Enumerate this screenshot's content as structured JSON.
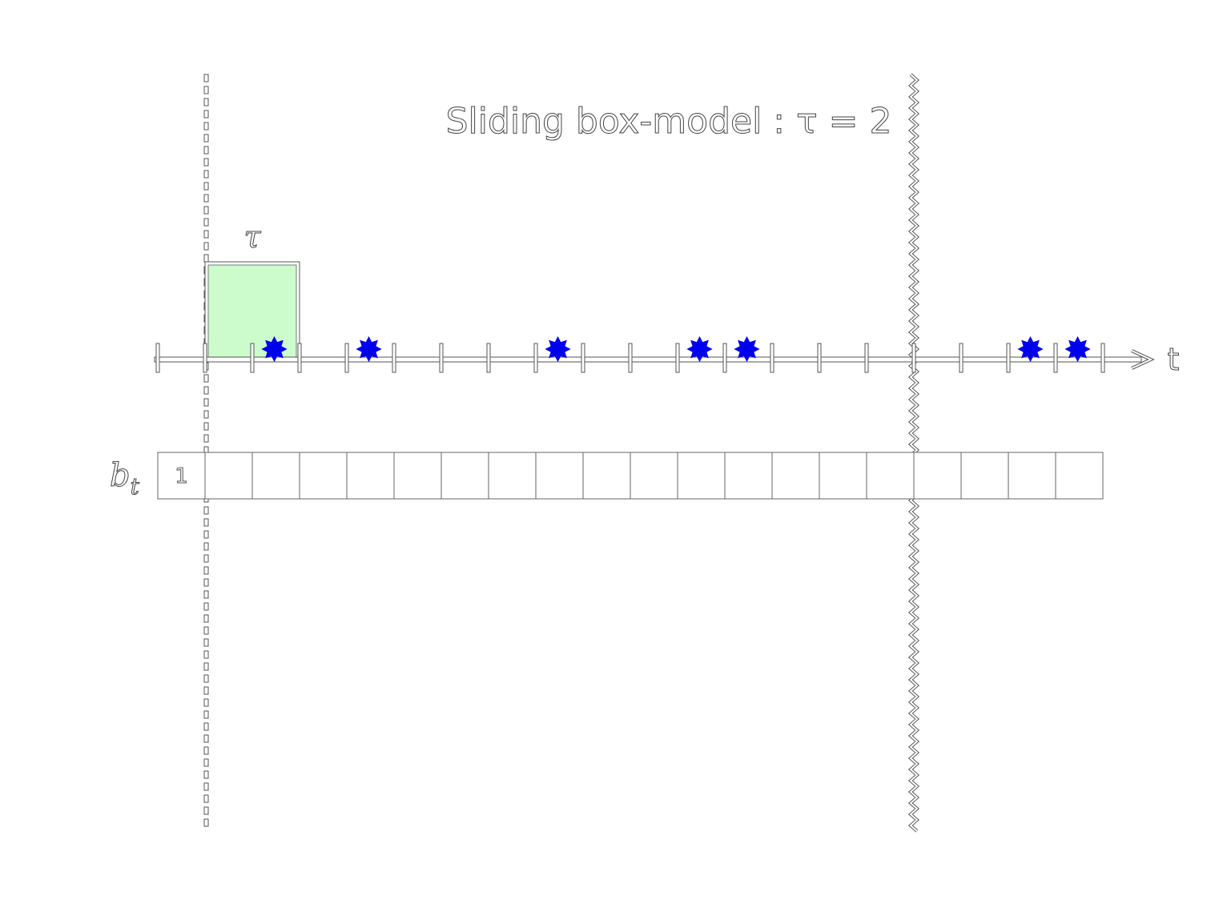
{
  "title": "Sliding box-model : τ = 2",
  "window_label": "τ",
  "axis_label": "t",
  "buffer_label": "b",
  "buffer_label_sub": "t",
  "window": {
    "start_slot": 1,
    "width_slots": 2,
    "fill": "#ccfccc",
    "marker_slot": 2
  },
  "timeline": {
    "slots": 20,
    "tick_count": 21
  },
  "events": {
    "color": "#0000ee",
    "slots": [
      2.5,
      4.5,
      8.5,
      11.5,
      12.5,
      18.5,
      19.5
    ]
  },
  "buffer": {
    "cells": 20,
    "values": [
      "1",
      "",
      "",
      "",
      "",
      "",
      "",
      "",
      "",
      "",
      "",
      "",
      "",
      "",
      "",
      "",
      "",
      "",
      "",
      ""
    ]
  },
  "dashed_marker_slot": 1,
  "wavy_marker_slot": 16
}
